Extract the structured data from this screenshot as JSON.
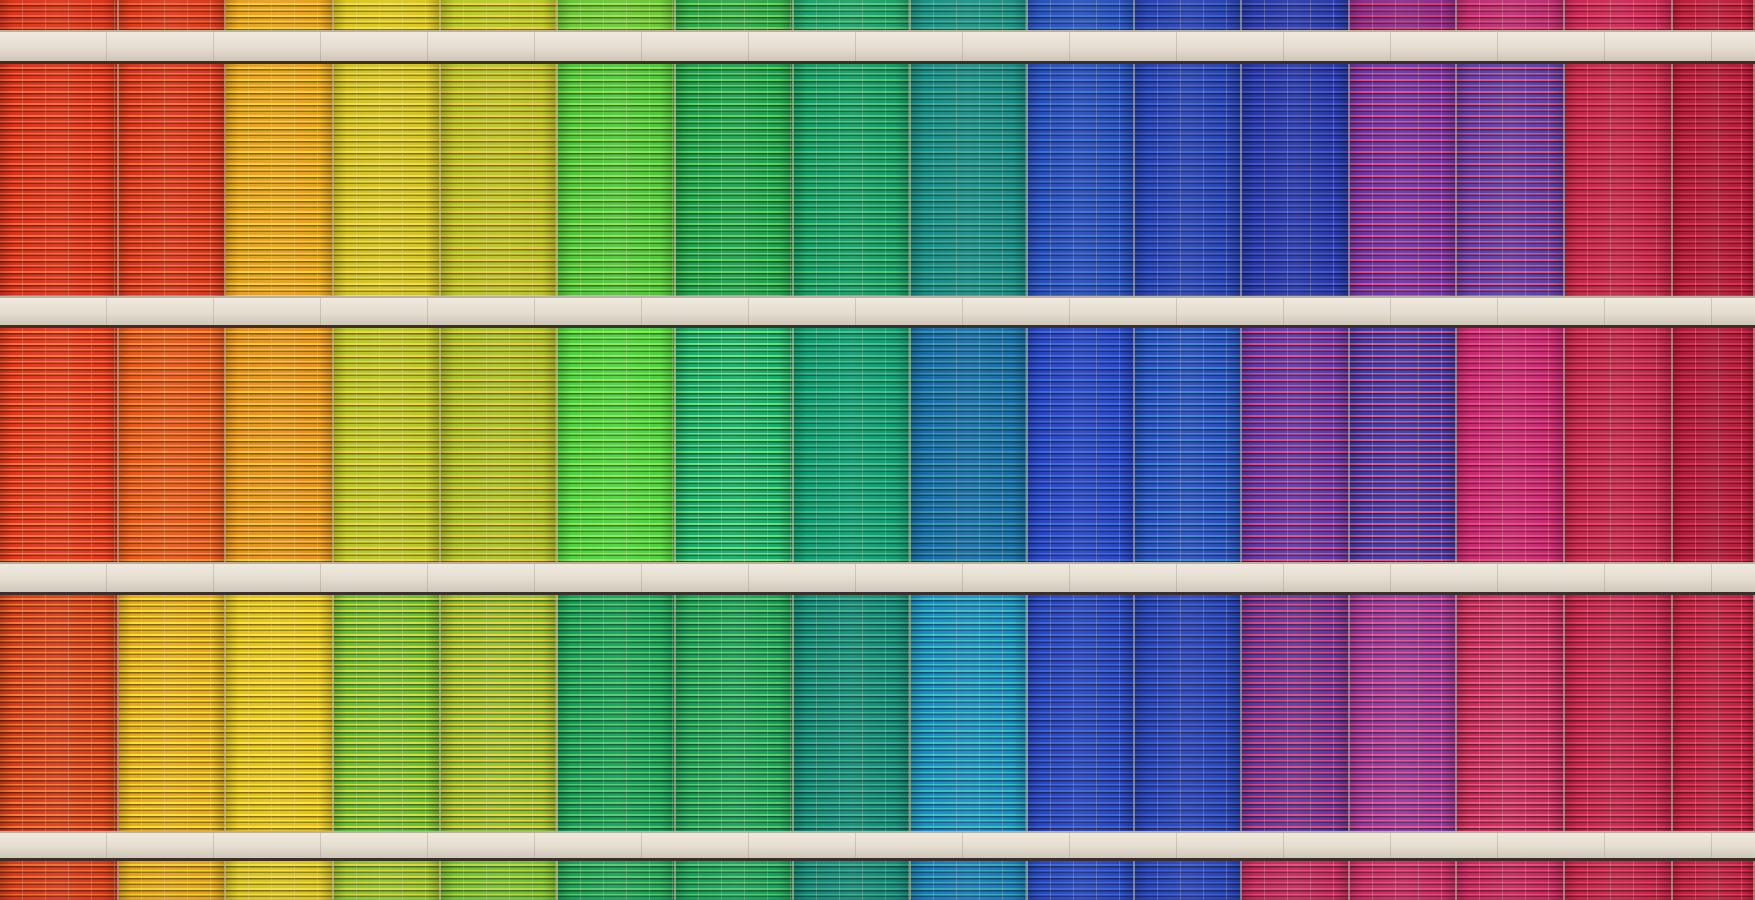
{
  "panel_widths": [
    119,
    107,
    108,
    107,
    117,
    118,
    118,
    117,
    117,
    107,
    107,
    108,
    107,
    108,
    108,
    82
  ],
  "floors": [
    {
      "name": "floor-top-partial",
      "panels": [
        [
          "#d8361f",
          "#f25a2a"
        ],
        [
          "#d93a1f",
          "#f0662a"
        ],
        [
          "#e8a020",
          "#f7d22a"
        ],
        [
          "#d9c624",
          "#f5e13a"
        ],
        [
          "#b7c82a",
          "#f1d430"
        ],
        [
          "#6cc63a",
          "#9ee04e"
        ],
        [
          "#2fa54a",
          "#6fd35a"
        ],
        [
          "#1fa06a",
          "#56c87a"
        ],
        [
          "#1e8f86",
          "#3ab08c"
        ],
        [
          "#2a52b8",
          "#3c6fd0"
        ],
        [
          "#2b43b0",
          "#3a5ec8"
        ],
        [
          "#2a3aa6",
          "#4a58c0"
        ],
        [
          "#8a2f8a",
          "#d03a78"
        ],
        [
          "#b83070",
          "#e4457a"
        ],
        [
          "#c82a55",
          "#e6406a"
        ],
        [
          "#b8203a",
          "#d83450"
        ]
      ]
    },
    {
      "name": "floor-1",
      "panels": [
        [
          "#d8321c",
          "#f46a2c"
        ],
        [
          "#d6361e",
          "#f2702c"
        ],
        [
          "#e6a01e",
          "#f8d42c"
        ],
        [
          "#d2c226",
          "#f4e03a"
        ],
        [
          "#b6c22a",
          "#f2cc32"
        ],
        [
          "#4fc43c",
          "#8ee052"
        ],
        [
          "#1e9e4e",
          "#5fcf60"
        ],
        [
          "#149a66",
          "#4cc478"
        ],
        [
          "#1a8a86",
          "#38aa8e"
        ],
        [
          "#2a4db8",
          "#3a70d2"
        ],
        [
          "#2a42b0",
          "#3c62cc"
        ],
        [
          "#2838a8",
          "#4656c2"
        ],
        [
          "#6a36a6",
          "#e04a80"
        ],
        [
          "#5a40a8",
          "#e0507e"
        ],
        [
          "#c22a48",
          "#e23c62"
        ],
        [
          "#b01c36",
          "#d83050"
        ]
      ]
    },
    {
      "name": "floor-2",
      "panels": [
        [
          "#e0361e",
          "#f57a30"
        ],
        [
          "#e4561e",
          "#f5922e"
        ],
        [
          "#e6901e",
          "#f8cc2e"
        ],
        [
          "#b8c42a",
          "#f0d834"
        ],
        [
          "#a6c02c",
          "#eccc34"
        ],
        [
          "#4ed042",
          "#8ce852"
        ],
        [
          "#1aa86a",
          "#6ce07a"
        ],
        [
          "#109a72",
          "#3cc088"
        ],
        [
          "#1a6aa8",
          "#2e98a8"
        ],
        [
          "#2a44c0",
          "#3a6ad6"
        ],
        [
          "#2a4cb8",
          "#3a82d2"
        ],
        [
          "#5a3aa8",
          "#e04a82"
        ],
        [
          "#3a3ca8",
          "#e05082"
        ],
        [
          "#c42a70",
          "#e8467e"
        ],
        [
          "#c02a4a",
          "#e43e66"
        ],
        [
          "#b01c3a",
          "#d23050"
        ]
      ]
    },
    {
      "name": "floor-3",
      "panels": [
        [
          "#da3a1e",
          "#f47a2e"
        ],
        [
          "#e8a81e",
          "#fae02e"
        ],
        [
          "#e6c01e",
          "#fae634"
        ],
        [
          "#62c03a",
          "#d8dc3a"
        ],
        [
          "#86c234",
          "#f0d23a"
        ],
        [
          "#12a05a",
          "#52c86e"
        ],
        [
          "#16a05a",
          "#58cc70"
        ],
        [
          "#108a7a",
          "#38b08c"
        ],
        [
          "#1a8ad0",
          "#3ac0b8"
        ],
        [
          "#2a44c0",
          "#3a64d8"
        ],
        [
          "#2a42b8",
          "#3a5ed0"
        ],
        [
          "#5a3aa8",
          "#e0447a"
        ],
        [
          "#8a3aa8",
          "#e6508a"
        ],
        [
          "#c82a5a",
          "#ec5680"
        ],
        [
          "#c2244a",
          "#e44064"
        ],
        [
          "#c02040",
          "#e23858"
        ]
      ]
    },
    {
      "name": "floor-bottom-partial",
      "panels": [
        [
          "#d8381e",
          "#f06a2a"
        ],
        [
          "#e2a01e",
          "#f6d22c"
        ],
        [
          "#d8c224",
          "#f4e03a"
        ],
        [
          "#8ac234",
          "#dcd83a"
        ],
        [
          "#6ec038",
          "#bcd83c"
        ],
        [
          "#18a058",
          "#5ac86e"
        ],
        [
          "#16a05a",
          "#52c672"
        ],
        [
          "#12887a",
          "#36aa8a"
        ],
        [
          "#1a78c0",
          "#34a8b4"
        ],
        [
          "#2a46c0",
          "#3a66d6"
        ],
        [
          "#2a42b8",
          "#3a5ed0"
        ],
        [
          "#c02a58",
          "#e4467a"
        ],
        [
          "#c42c60",
          "#e8487e"
        ],
        [
          "#c4285a",
          "#e8467c"
        ],
        [
          "#c42448",
          "#e23e62"
        ],
        [
          "#c02040",
          "#e03658"
        ]
      ]
    }
  ]
}
